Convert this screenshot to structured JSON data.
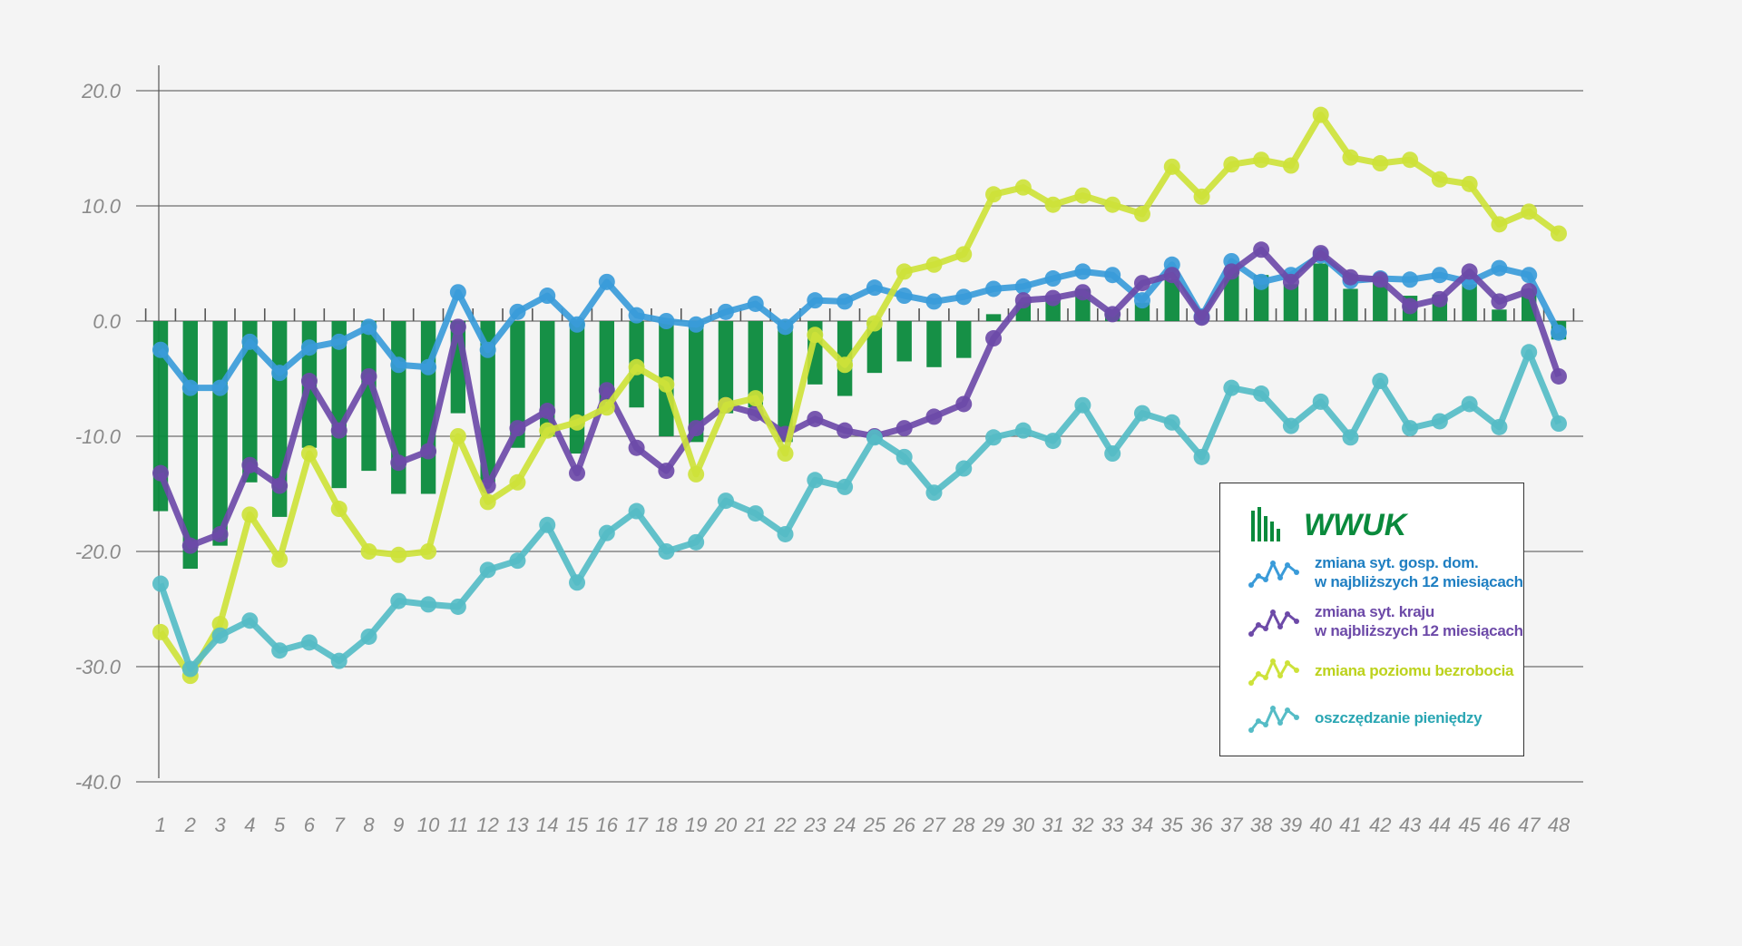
{
  "chart_data": {
    "type": "bar+line",
    "x": [
      1,
      2,
      3,
      4,
      5,
      6,
      7,
      8,
      9,
      10,
      11,
      12,
      13,
      14,
      15,
      16,
      17,
      18,
      19,
      20,
      21,
      22,
      23,
      24,
      25,
      26,
      27,
      28,
      29,
      30,
      31,
      32,
      33,
      34,
      35,
      36,
      37,
      38,
      39,
      40,
      41,
      42,
      43,
      44,
      45,
      46,
      47,
      48
    ],
    "ylim": [
      -40,
      20
    ],
    "yticks": [
      20,
      10,
      0,
      -10,
      -20,
      -30,
      -40
    ],
    "ytick_labels": [
      "20.0",
      "10.0",
      "0.0",
      "-10.0",
      "-20.0",
      "-30.0",
      "-40.0"
    ],
    "grid": true,
    "legend_position": "bottom-right",
    "bars": {
      "name": "WWUK",
      "color": "#0a8a3c",
      "values": [
        -16.5,
        -21.5,
        -19.5,
        -14,
        -17,
        -11,
        -14.5,
        -13,
        -15,
        -15,
        -8,
        -14,
        -11,
        -10,
        -11.5,
        -7,
        -7.5,
        -10,
        -10.5,
        -8,
        -7.5,
        -10.5,
        -5.5,
        -6.5,
        -4.5,
        -3.5,
        -4,
        -3.2,
        0.6,
        1.6,
        1.8,
        2.8,
        1,
        1.6,
        3.6,
        0.3,
        4.6,
        4,
        3.2,
        5,
        2.8,
        3.6,
        2.2,
        2.3,
        3.2,
        1,
        2.8,
        -1.6
      ]
    },
    "series": [
      {
        "name": "zmiana syt. gosp. dom.\nw najbliższych 12 miesiącach",
        "color": "#3a9bd9",
        "values": [
          -2.5,
          -5.8,
          -5.8,
          -1.8,
          -4.5,
          -2.3,
          -1.8,
          -0.5,
          -3.8,
          -4,
          2.5,
          -2.5,
          0.8,
          2.2,
          -0.3,
          3.4,
          0.5,
          0,
          -0.3,
          0.8,
          1.5,
          -0.5,
          1.8,
          1.7,
          2.9,
          2.2,
          1.7,
          2.1,
          2.8,
          3,
          3.7,
          4.3,
          4,
          1.8,
          4.9,
          0.4,
          5.2,
          3.4,
          4,
          5.7,
          3.5,
          3.7,
          3.6,
          4,
          3.4,
          4.6,
          4,
          -1
        ]
      },
      {
        "name": "zmiana syt. kraju\nw najbliższych 12 miesiącach",
        "color": "#6d4aa8",
        "values": [
          -13.2,
          -19.5,
          -18.5,
          -12.5,
          -14.3,
          -5.2,
          -9.5,
          -4.8,
          -12.3,
          -11.3,
          -0.5,
          -14.3,
          -9.3,
          -7.8,
          -13.2,
          -6,
          -11,
          -13,
          -9.3,
          -7.3,
          -8,
          -9.8,
          -8.5,
          -9.5,
          -10,
          -9.3,
          -8.3,
          -7.2,
          -1.5,
          1.8,
          2,
          2.5,
          0.6,
          3.3,
          4,
          0.3,
          4.3,
          6.2,
          3.4,
          5.9,
          3.8,
          3.6,
          1.3,
          1.9,
          4.3,
          1.7,
          2.6,
          -4.8
        ]
      },
      {
        "name": "zmiana poziomu bezrobocia",
        "color": "#cde23a",
        "values": [
          -27,
          -30.8,
          -26.3,
          -16.8,
          -20.7,
          -11.5,
          -16.3,
          -20,
          -20.3,
          -20,
          -10,
          -15.7,
          -14,
          -9.5,
          -8.8,
          -7.5,
          -4,
          -5.5,
          -13.3,
          -7.3,
          -6.7,
          -11.5,
          -1.2,
          -3.8,
          -0.2,
          4.3,
          4.9,
          5.8,
          11,
          11.6,
          10.1,
          10.9,
          10.1,
          9.3,
          13.4,
          10.8,
          13.6,
          14,
          13.5,
          17.9,
          14.2,
          13.7,
          14,
          12.3,
          11.9,
          8.4,
          9.5,
          7.6
        ]
      },
      {
        "name": "oszczędzanie pieniędzy",
        "color": "#55bcc6",
        "values": [
          -22.8,
          -30.2,
          -27.3,
          -26,
          -28.6,
          -27.9,
          -29.5,
          -27.4,
          -24.3,
          -24.6,
          -24.8,
          -21.6,
          -20.8,
          -17.7,
          -22.7,
          -18.4,
          -16.5,
          -20,
          -19.2,
          -15.6,
          -16.7,
          -18.5,
          -13.8,
          -14.4,
          -10.1,
          -11.8,
          -14.9,
          -12.8,
          -10.1,
          -9.5,
          -10.4,
          -7.3,
          -11.5,
          -8,
          -8.8,
          -11.8,
          -5.8,
          -6.3,
          -9.1,
          -7,
          -10.1,
          -5.2,
          -9.3,
          -8.7,
          -7.2,
          -9.2,
          -2.7,
          -8.9
        ]
      }
    ]
  }
}
